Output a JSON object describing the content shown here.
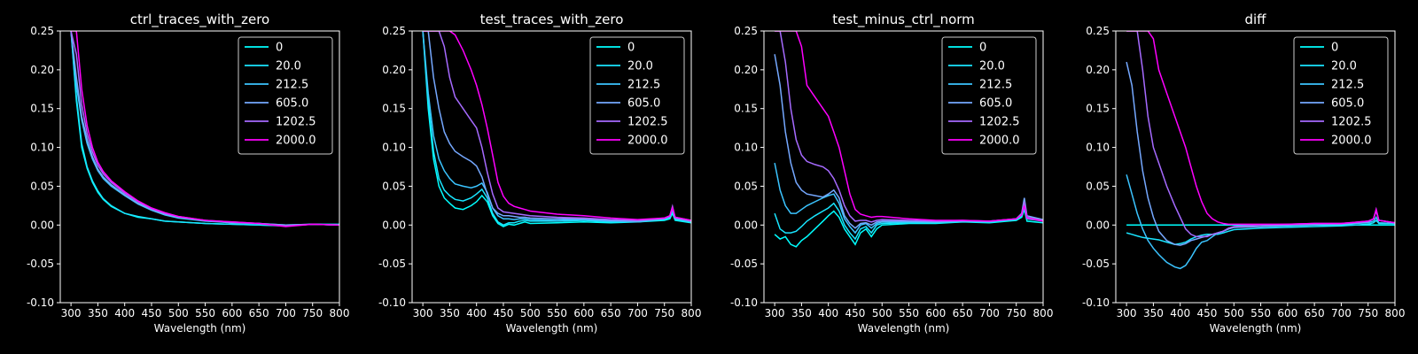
{
  "figure": {
    "background": "#000000",
    "foreground": "#ffffff",
    "xlabel": "Wavelength (nm)"
  },
  "chart_data": [
    {
      "type": "line",
      "title": "ctrl_traces_with_zero",
      "xlabel": "Wavelength (nm)",
      "ylabel": "",
      "xlim": [
        280,
        800
      ],
      "ylim": [
        -0.1,
        0.25
      ],
      "xticks": [
        300,
        350,
        400,
        450,
        500,
        550,
        600,
        650,
        700,
        750,
        800
      ],
      "yticks": [
        -0.1,
        -0.05,
        0.0,
        0.05,
        0.1,
        0.15,
        0.2,
        0.25
      ],
      "legend_position": "top-right",
      "x": [
        300,
        310,
        320,
        330,
        340,
        350,
        360,
        375,
        400,
        425,
        450,
        475,
        500,
        550,
        600,
        650,
        700,
        750,
        800
      ],
      "series": [
        {
          "name": "0",
          "color": "#00ffff",
          "values": [
            0.25,
            0.16,
            0.1,
            0.073,
            0.055,
            0.042,
            0.033,
            0.024,
            0.015,
            0.01,
            0.008,
            0.005,
            0.004,
            0.002,
            0.001,
            0.0,
            -0.001,
            0.001,
            0.001
          ]
        },
        {
          "name": "20.0",
          "color": "#19e5ff",
          "values": [
            0.25,
            0.165,
            0.105,
            0.075,
            0.057,
            0.044,
            0.034,
            0.025,
            0.015,
            0.011,
            0.008,
            0.005,
            0.004,
            0.002,
            0.001,
            0.0,
            -0.001,
            0.001,
            0.0
          ]
        },
        {
          "name": "212.5",
          "color": "#3bc4ff",
          "values": [
            0.25,
            0.18,
            0.135,
            0.105,
            0.085,
            0.07,
            0.06,
            0.05,
            0.038,
            0.027,
            0.019,
            0.013,
            0.009,
            0.005,
            0.003,
            0.002,
            0.0,
            0.001,
            0.0
          ]
        },
        {
          "name": "605.0",
          "color": "#75a8ff",
          "values": [
            0.25,
            0.19,
            0.14,
            0.11,
            0.088,
            0.072,
            0.062,
            0.052,
            0.039,
            0.028,
            0.02,
            0.014,
            0.01,
            0.006,
            0.003,
            0.002,
            0.0,
            0.001,
            0.0
          ]
        },
        {
          "name": "1202.5",
          "color": "#a66aff",
          "values": [
            0.25,
            0.22,
            0.155,
            0.118,
            0.094,
            0.077,
            0.066,
            0.055,
            0.041,
            0.03,
            0.021,
            0.015,
            0.011,
            0.006,
            0.004,
            0.002,
            -0.001,
            0.001,
            0.0
          ]
        },
        {
          "name": "2000.0",
          "color": "#ff00ff",
          "values": [
            0.25,
            0.25,
            0.175,
            0.128,
            0.1,
            0.081,
            0.069,
            0.057,
            0.043,
            0.031,
            0.022,
            0.016,
            0.011,
            0.006,
            0.004,
            0.002,
            -0.002,
            0.001,
            0.0
          ]
        }
      ]
    },
    {
      "type": "line",
      "title": "test_traces_with_zero",
      "xlabel": "Wavelength (nm)",
      "ylabel": "",
      "xlim": [
        280,
        800
      ],
      "ylim": [
        -0.1,
        0.25
      ],
      "xticks": [
        300,
        350,
        400,
        450,
        500,
        550,
        600,
        650,
        700,
        750,
        800
      ],
      "yticks": [
        -0.1,
        -0.05,
        0.0,
        0.05,
        0.1,
        0.15,
        0.2,
        0.25
      ],
      "legend_position": "top-right",
      "x": [
        300,
        310,
        320,
        330,
        340,
        350,
        360,
        375,
        390,
        400,
        410,
        420,
        430,
        440,
        450,
        460,
        470,
        480,
        490,
        500,
        550,
        600,
        650,
        700,
        750,
        760,
        765,
        770,
        800
      ],
      "series": [
        {
          "name": "0",
          "color": "#00ffff",
          "values": [
            0.25,
            0.15,
            0.085,
            0.05,
            0.035,
            0.028,
            0.022,
            0.02,
            0.025,
            0.03,
            0.038,
            0.03,
            0.012,
            0.002,
            -0.002,
            0.001,
            0.0,
            0.002,
            0.004,
            0.002,
            0.003,
            0.004,
            0.003,
            0.004,
            0.006,
            0.008,
            0.015,
            0.006,
            0.003
          ]
        },
        {
          "name": "20.0",
          "color": "#19e5ff",
          "values": [
            0.25,
            0.16,
            0.095,
            0.06,
            0.045,
            0.038,
            0.033,
            0.031,
            0.035,
            0.04,
            0.046,
            0.035,
            0.015,
            0.004,
            0.0,
            0.003,
            0.003,
            0.005,
            0.006,
            0.005,
            0.005,
            0.006,
            0.004,
            0.004,
            0.007,
            0.01,
            0.018,
            0.007,
            0.004
          ]
        },
        {
          "name": "212.5",
          "color": "#3bc4ff",
          "values": [
            0.25,
            0.17,
            0.115,
            0.085,
            0.07,
            0.06,
            0.053,
            0.05,
            0.048,
            0.05,
            0.054,
            0.042,
            0.022,
            0.012,
            0.008,
            0.008,
            0.007,
            0.008,
            0.008,
            0.007,
            0.006,
            0.007,
            0.005,
            0.004,
            0.008,
            0.01,
            0.02,
            0.008,
            0.004
          ]
        },
        {
          "name": "605.0",
          "color": "#75a8ff",
          "values": [
            0.25,
            0.25,
            0.19,
            0.15,
            0.12,
            0.105,
            0.095,
            0.088,
            0.082,
            0.076,
            0.062,
            0.04,
            0.022,
            0.015,
            0.012,
            0.012,
            0.011,
            0.01,
            0.01,
            0.009,
            0.008,
            0.008,
            0.006,
            0.005,
            0.008,
            0.011,
            0.022,
            0.009,
            0.005
          ]
        },
        {
          "name": "1202.5",
          "color": "#a66aff",
          "values": [
            0.25,
            0.25,
            0.25,
            0.25,
            0.23,
            0.19,
            0.165,
            0.15,
            0.135,
            0.125,
            0.1,
            0.068,
            0.04,
            0.022,
            0.017,
            0.016,
            0.015,
            0.014,
            0.013,
            0.012,
            0.01,
            0.009,
            0.007,
            0.006,
            0.009,
            0.012,
            0.024,
            0.01,
            0.006
          ]
        },
        {
          "name": "2000.0",
          "color": "#ff00ff",
          "values": [
            0.25,
            0.25,
            0.25,
            0.25,
            0.25,
            0.25,
            0.245,
            0.225,
            0.2,
            0.18,
            0.155,
            0.125,
            0.09,
            0.055,
            0.037,
            0.028,
            0.024,
            0.022,
            0.02,
            0.018,
            0.014,
            0.012,
            0.009,
            0.007,
            0.009,
            0.012,
            0.022,
            0.01,
            0.006
          ]
        }
      ]
    },
    {
      "type": "line",
      "title": "test_minus_ctrl_norm",
      "xlabel": "Wavelength (nm)",
      "ylabel": "",
      "xlim": [
        280,
        800
      ],
      "ylim": [
        -0.1,
        0.25
      ],
      "xticks": [
        300,
        350,
        400,
        450,
        500,
        550,
        600,
        650,
        700,
        750,
        800
      ],
      "yticks": [
        -0.1,
        -0.05,
        0.0,
        0.05,
        0.1,
        0.15,
        0.2,
        0.25
      ],
      "legend_position": "top-right",
      "x": [
        300,
        310,
        320,
        330,
        340,
        350,
        360,
        375,
        390,
        400,
        410,
        420,
        430,
        440,
        450,
        460,
        470,
        480,
        490,
        500,
        550,
        600,
        650,
        700,
        750,
        760,
        765,
        770,
        800
      ],
      "series": [
        {
          "name": "0",
          "color": "#00ffff",
          "values": [
            -0.012,
            -0.018,
            -0.015,
            -0.025,
            -0.028,
            -0.02,
            -0.015,
            -0.005,
            0.005,
            0.012,
            0.018,
            0.01,
            -0.005,
            -0.015,
            -0.025,
            -0.01,
            -0.005,
            -0.015,
            -0.005,
            0.0,
            0.002,
            0.002,
            0.004,
            0.003,
            0.006,
            0.01,
            0.02,
            0.005,
            0.003
          ]
        },
        {
          "name": "20.0",
          "color": "#19e5ff",
          "values": [
            0.015,
            -0.005,
            -0.01,
            -0.01,
            -0.008,
            -0.002,
            0.005,
            0.012,
            0.018,
            0.022,
            0.028,
            0.018,
            0.0,
            -0.01,
            -0.018,
            -0.005,
            -0.002,
            -0.01,
            0.0,
            0.002,
            0.003,
            0.003,
            0.004,
            0.004,
            0.007,
            0.012,
            0.025,
            0.008,
            0.005
          ]
        },
        {
          "name": "212.5",
          "color": "#3bc4ff",
          "values": [
            0.08,
            0.045,
            0.025,
            0.015,
            0.015,
            0.02,
            0.025,
            0.03,
            0.035,
            0.038,
            0.04,
            0.028,
            0.008,
            -0.002,
            -0.01,
            0.0,
            0.002,
            -0.004,
            0.002,
            0.004,
            0.004,
            0.004,
            0.005,
            0.004,
            0.008,
            0.014,
            0.03,
            0.01,
            0.006
          ]
        },
        {
          "name": "605.0",
          "color": "#75a8ff",
          "values": [
            0.22,
            0.18,
            0.12,
            0.08,
            0.055,
            0.045,
            0.04,
            0.038,
            0.036,
            0.04,
            0.045,
            0.035,
            0.012,
            0.002,
            -0.004,
            0.002,
            0.003,
            0.0,
            0.004,
            0.005,
            0.005,
            0.004,
            0.005,
            0.005,
            0.008,
            0.015,
            0.035,
            0.012,
            0.007
          ]
        },
        {
          "name": "1202.5",
          "color": "#a66aff",
          "values": [
            0.25,
            0.25,
            0.21,
            0.15,
            0.11,
            0.09,
            0.082,
            0.078,
            0.075,
            0.07,
            0.06,
            0.045,
            0.025,
            0.012,
            0.005,
            0.006,
            0.006,
            0.004,
            0.006,
            0.007,
            0.006,
            0.005,
            0.006,
            0.005,
            0.008,
            0.014,
            0.03,
            0.01,
            0.006
          ]
        },
        {
          "name": "2000.0",
          "color": "#ff00ff",
          "values": [
            0.25,
            0.25,
            0.25,
            0.25,
            0.25,
            0.23,
            0.18,
            0.165,
            0.15,
            0.14,
            0.12,
            0.1,
            0.07,
            0.04,
            0.02,
            0.014,
            0.012,
            0.01,
            0.011,
            0.011,
            0.008,
            0.006,
            0.006,
            0.005,
            0.008,
            0.013,
            0.025,
            0.009,
            0.005
          ]
        }
      ]
    },
    {
      "type": "line",
      "title": "diff",
      "xlabel": "Wavelength (nm)",
      "ylabel": "",
      "xlim": [
        280,
        800
      ],
      "ylim": [
        -0.1,
        0.25
      ],
      "xticks": [
        300,
        350,
        400,
        450,
        500,
        550,
        600,
        650,
        700,
        750,
        800
      ],
      "yticks": [
        -0.1,
        -0.05,
        0.0,
        0.05,
        0.1,
        0.15,
        0.2,
        0.25
      ],
      "legend_position": "top-right",
      "x": [
        300,
        310,
        320,
        330,
        340,
        350,
        360,
        375,
        390,
        400,
        410,
        420,
        430,
        440,
        450,
        460,
        470,
        480,
        490,
        500,
        550,
        600,
        650,
        700,
        750,
        760,
        765,
        770,
        800
      ],
      "series": [
        {
          "name": "0",
          "color": "#00ffff",
          "values": [
            0.0,
            0.0,
            0.0,
            0.0,
            0.0,
            0.0,
            0.0,
            0.0,
            0.0,
            0.0,
            0.0,
            0.0,
            0.0,
            0.0,
            0.0,
            0.0,
            0.0,
            0.0,
            0.0,
            0.0,
            0.0,
            0.0,
            0.0,
            0.0,
            0.0,
            0.0,
            0.0,
            0.0,
            0.0
          ]
        },
        {
          "name": "20.0",
          "color": "#19e5ff",
          "values": [
            -0.01,
            -0.012,
            -0.014,
            -0.016,
            -0.017,
            -0.018,
            -0.019,
            -0.022,
            -0.025,
            -0.024,
            -0.022,
            -0.018,
            -0.015,
            -0.013,
            -0.012,
            -0.012,
            -0.012,
            -0.01,
            -0.008,
            -0.006,
            -0.004,
            -0.003,
            -0.002,
            -0.001,
            0.001,
            0.003,
            0.006,
            0.002,
            0.002
          ]
        },
        {
          "name": "212.5",
          "color": "#3bc4ff",
          "values": [
            0.065,
            0.04,
            0.015,
            -0.005,
            -0.02,
            -0.03,
            -0.038,
            -0.048,
            -0.054,
            -0.056,
            -0.052,
            -0.042,
            -0.03,
            -0.022,
            -0.02,
            -0.015,
            -0.01,
            -0.008,
            -0.005,
            -0.003,
            -0.002,
            -0.001,
            0.0,
            0.001,
            0.003,
            0.005,
            0.01,
            0.003,
            0.002
          ]
        },
        {
          "name": "605.0",
          "color": "#75a8ff",
          "values": [
            0.21,
            0.18,
            0.12,
            0.07,
            0.035,
            0.01,
            -0.008,
            -0.02,
            -0.025,
            -0.026,
            -0.024,
            -0.02,
            -0.018,
            -0.016,
            -0.014,
            -0.012,
            -0.01,
            -0.008,
            -0.005,
            -0.003,
            -0.002,
            0.0,
            0.001,
            0.001,
            0.004,
            0.008,
            0.02,
            0.006,
            0.003
          ]
        },
        {
          "name": "1202.5",
          "color": "#a66aff",
          "values": [
            0.25,
            0.25,
            0.25,
            0.2,
            0.14,
            0.1,
            0.08,
            0.05,
            0.025,
            0.01,
            -0.005,
            -0.012,
            -0.015,
            -0.015,
            -0.015,
            -0.012,
            -0.01,
            -0.008,
            -0.004,
            -0.002,
            0.0,
            0.001,
            0.002,
            0.002,
            0.005,
            0.008,
            0.018,
            0.006,
            0.003
          ]
        },
        {
          "name": "2000.0",
          "color": "#ff00ff",
          "values": [
            0.25,
            0.25,
            0.25,
            0.25,
            0.25,
            0.24,
            0.2,
            0.17,
            0.14,
            0.12,
            0.1,
            0.075,
            0.05,
            0.03,
            0.015,
            0.008,
            0.004,
            0.002,
            0.001,
            0.001,
            0.001,
            0.001,
            0.002,
            0.002,
            0.005,
            0.008,
            0.02,
            0.006,
            0.003
          ]
        }
      ]
    }
  ]
}
